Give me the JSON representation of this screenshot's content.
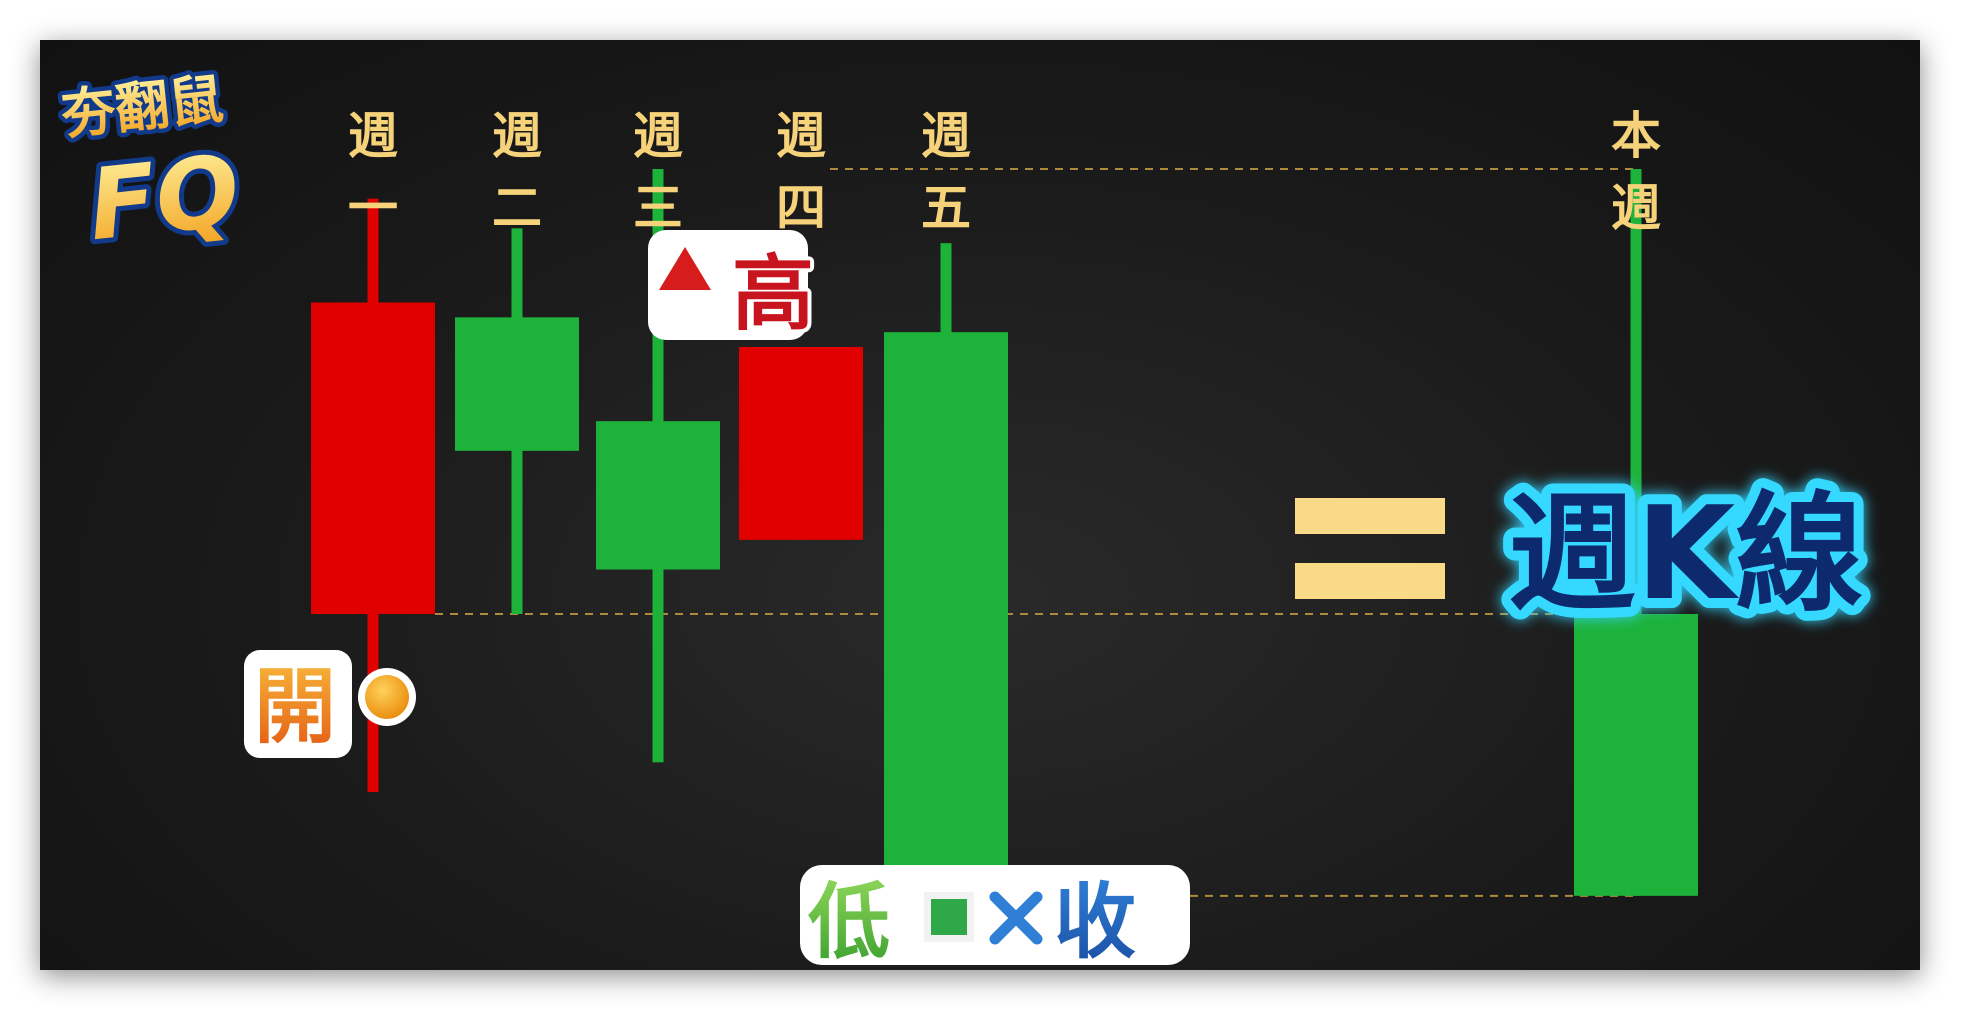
{
  "logo": {
    "line1": "夯翻鼠",
    "line2": "FQ"
  },
  "chart_data": {
    "type": "candlestick",
    "title": "週K線",
    "equals_sign": "=",
    "categories": [
      "週一",
      "週二",
      "週三",
      "週四",
      "週五",
      "本週"
    ],
    "day_labels": [
      {
        "top": "週",
        "bottom": "一"
      },
      {
        "top": "週",
        "bottom": "二"
      },
      {
        "top": "週",
        "bottom": "三"
      },
      {
        "top": "週",
        "bottom": "四"
      },
      {
        "top": "週",
        "bottom": "五"
      },
      {
        "top": "本",
        "bottom": "週"
      }
    ],
    "candles": [
      {
        "name": "週一",
        "open": 40,
        "close": 61,
        "high": 68,
        "low": 28,
        "color": "red"
      },
      {
        "name": "週二",
        "open": 60,
        "close": 51,
        "high": 66,
        "low": 40,
        "color": "green"
      },
      {
        "name": "週三",
        "open": 53,
        "close": 43,
        "high": 70,
        "low": 30,
        "color": "green"
      },
      {
        "name": "週四",
        "open": 45,
        "close": 58,
        "high": 58,
        "low": 45,
        "color": "red"
      },
      {
        "name": "週五",
        "open": 59,
        "close": 21,
        "high": 65,
        "low": 21,
        "color": "green"
      },
      {
        "name": "本週",
        "open": 40,
        "close": 21,
        "high": 70,
        "low": 21,
        "color": "green"
      }
    ],
    "annotations": {
      "high": {
        "label": "高",
        "marker": "triangle",
        "value": 70
      },
      "open": {
        "label": "開",
        "marker": "circle",
        "value": 40
      },
      "low_close": {
        "low_label": "低",
        "close_label": "收",
        "marker": "square-x",
        "value": 21
      }
    },
    "ylim": [
      16,
      76
    ],
    "colors": {
      "up": "#e00000",
      "down": "#1db23a",
      "label": "#f6d27a",
      "guide": "#b08a3c",
      "equals": "#f9db87"
    }
  }
}
